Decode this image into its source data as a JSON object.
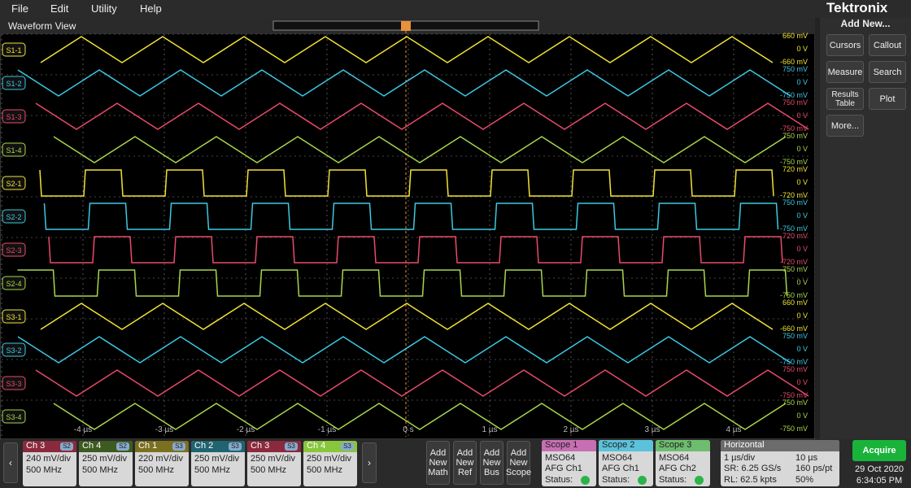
{
  "menu": [
    "File",
    "Edit",
    "Utility",
    "Help"
  ],
  "brand": "Tektronix",
  "view_title": "Waveform View",
  "traces": [
    {
      "label": "S1-1",
      "color": "#f2e233",
      "wave": "triangle",
      "scale": [
        "660 mV",
        "0 V",
        "-660 mV"
      ]
    },
    {
      "label": "S1-2",
      "color": "#3cc9e2",
      "wave": "triangle",
      "scale": [
        "750 mV",
        "0 V",
        "-750 mV"
      ]
    },
    {
      "label": "S1-3",
      "color": "#ea4a6b",
      "wave": "triangle",
      "scale": [
        "750 mV",
        "0 V",
        "-750 mV"
      ]
    },
    {
      "label": "S1-4",
      "color": "#a9d64a",
      "wave": "triangle",
      "scale": [
        "750 mV",
        "0 V",
        "-750 mV"
      ]
    },
    {
      "label": "S2-1",
      "color": "#f2e233",
      "wave": "square",
      "scale": [
        "720 mV",
        "0 V",
        "-720 mV"
      ]
    },
    {
      "label": "S2-2",
      "color": "#3cc9e2",
      "wave": "square",
      "scale": [
        "750 mV",
        "0 V",
        "-750 mV"
      ]
    },
    {
      "label": "S2-3",
      "color": "#ea4a6b",
      "wave": "square",
      "scale": [
        "720 mV",
        "0 V",
        "-720 mV"
      ]
    },
    {
      "label": "S2-4",
      "color": "#a9d64a",
      "wave": "square",
      "scale": [
        "750 mV",
        "0 V",
        "-750 mV"
      ]
    },
    {
      "label": "S3-1",
      "color": "#f2e233",
      "wave": "triangle",
      "scale": [
        "660 mV",
        "0 V",
        "-660 mV"
      ]
    },
    {
      "label": "S3-2",
      "color": "#3cc9e2",
      "wave": "triangle",
      "scale": [
        "750 mV",
        "0 V",
        "-750 mV"
      ]
    },
    {
      "label": "S3-3",
      "color": "#ea4a6b",
      "wave": "triangle",
      "scale": [
        "750 mV",
        "0 V",
        "-750 mV"
      ]
    },
    {
      "label": "S3-4",
      "color": "#a9d64a",
      "wave": "triangle",
      "scale": [
        "750 mV",
        "0 V",
        "-750 mV"
      ]
    }
  ],
  "time_labels": [
    "-4 µs",
    "-3 µs",
    "-2 µs",
    "-1 µs",
    "0 s",
    "1 µs",
    "2 µs",
    "3 µs",
    "4 µs"
  ],
  "panel": {
    "title": "Add New...",
    "buttons": [
      "Cursors",
      "Callout",
      "Measure",
      "Search",
      "Results Table",
      "Plot",
      "More..."
    ]
  },
  "channels": [
    {
      "name": "Ch 3",
      "tag": "S2",
      "color": "#8a2a3c",
      "scale": "240 mV/div",
      "bw": "500 MHz"
    },
    {
      "name": "Ch 4",
      "tag": "S2",
      "color": "#3d5a20",
      "scale": "250 mV/div",
      "bw": "500 MHz"
    },
    {
      "name": "Ch 1",
      "tag": "S3",
      "color": "#7a7020",
      "scale": "220 mV/div",
      "bw": "500 MHz"
    },
    {
      "name": "Ch 2",
      "tag": "S3",
      "color": "#1f6470",
      "scale": "250 mV/div",
      "bw": "500 MHz"
    },
    {
      "name": "Ch 3",
      "tag": "S3",
      "color": "#8a2a3c",
      "scale": "250 mV/div",
      "bw": "500 MHz"
    },
    {
      "name": "Ch 4",
      "tag": "S3",
      "color": "#88c63c",
      "scale": "250 mV/div",
      "bw": "500 MHz"
    }
  ],
  "add_buttons": [
    "Add New Math",
    "Add New Ref",
    "Add New Bus",
    "Add New Scope"
  ],
  "scopes": [
    {
      "name": "Scope 1",
      "color": "#c86eb5",
      "model": "MSO64",
      "source": "AFG Ch1",
      "status": "Status:"
    },
    {
      "name": "Scope 2",
      "color": "#5bc2dc",
      "model": "MSO64",
      "source": "AFG Ch1",
      "status": "Status:"
    },
    {
      "name": "Scope 3",
      "color": "#6ebd6e",
      "model": "MSO64",
      "source": "AFG Ch2",
      "status": "Status:"
    }
  ],
  "horizontal": {
    "title": "Horizontal",
    "scale": "1 µs/div",
    "length": "10 µs",
    "sr": "SR: 6.25 GS/s",
    "pt": "160 ps/pt",
    "rl": "RL: 62.5 kpts",
    "pos": "50%"
  },
  "acquire": "Acquire",
  "date": "29 Oct 2020",
  "time": "6:34:05 PM"
}
